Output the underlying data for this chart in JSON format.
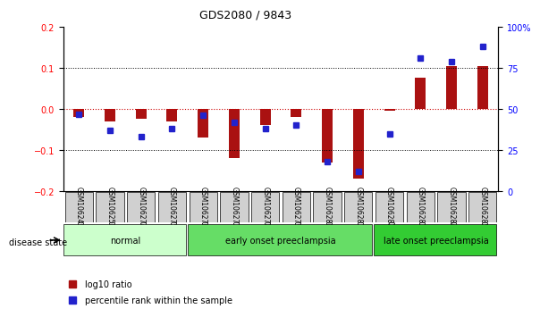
{
  "title": "GDS2080 / 9843",
  "samples": [
    "GSM106249",
    "GSM106250",
    "GSM106274",
    "GSM106275",
    "GSM106276",
    "GSM106277",
    "GSM106278",
    "GSM106279",
    "GSM106280",
    "GSM106281",
    "GSM106282",
    "GSM106283",
    "GSM106284",
    "GSM106285"
  ],
  "log10_ratio": [
    -0.02,
    -0.03,
    -0.025,
    -0.03,
    -0.07,
    -0.12,
    -0.04,
    -0.02,
    -0.13,
    -0.17,
    -0.005,
    0.075,
    0.105,
    0.105
  ],
  "percentile_rank": [
    47,
    37,
    33,
    38,
    46,
    42,
    38,
    40,
    18,
    12,
    35,
    81,
    79,
    88
  ],
  "groups": [
    {
      "label": "normal",
      "start": 0,
      "end": 4,
      "color": "#ccffcc"
    },
    {
      "label": "early onset preeclampsia",
      "start": 4,
      "end": 10,
      "color": "#66dd66"
    },
    {
      "label": "late onset preeclampsia",
      "start": 10,
      "end": 14,
      "color": "#33cc33"
    }
  ],
  "ylim_left": [
    -0.2,
    0.2
  ],
  "ylim_right": [
    0,
    100
  ],
  "yticks_left": [
    -0.2,
    -0.1,
    0,
    0.1,
    0.2
  ],
  "yticks_right": [
    0,
    25,
    50,
    75,
    100
  ],
  "bar_color": "#aa1111",
  "dot_color": "#2222cc",
  "zero_line_color": "#cc0000",
  "grid_color": "#000000",
  "legend_items": [
    "log10 ratio",
    "percentile rank within the sample"
  ]
}
